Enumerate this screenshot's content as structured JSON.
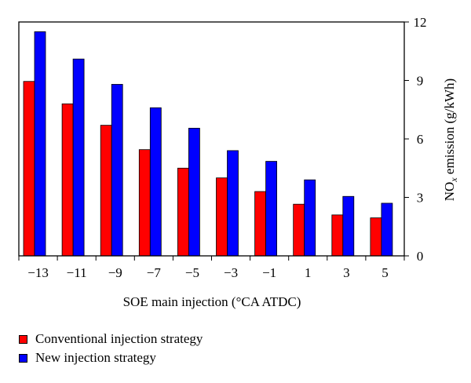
{
  "chart_data": {
    "type": "bar",
    "categories": [
      "−13",
      "−11",
      "−9",
      "−7",
      "−5",
      "−3",
      "−1",
      "1",
      "3",
      "5"
    ],
    "series": [
      {
        "name": "Conventional injection strategy",
        "color": "#ff0000",
        "values": [
          8.95,
          7.8,
          6.7,
          5.45,
          4.5,
          4.0,
          3.3,
          2.65,
          2.1,
          1.95
        ]
      },
      {
        "name": "New injection strategy",
        "color": "#0000ff",
        "values": [
          11.5,
          10.1,
          8.8,
          7.6,
          6.55,
          5.4,
          4.85,
          3.9,
          3.05,
          2.7
        ]
      }
    ],
    "xlabel": "SOE main injection (°CA ATDC)",
    "ylabel": "NO",
    "ylabel_sub": "x",
    "ylabel_rest": " emission (g/kWh)",
    "ylim": [
      0,
      12
    ],
    "yticks": [
      0,
      3,
      6,
      9,
      12
    ],
    "y_axis_side": "right",
    "grid": false,
    "legend_position": "bottom-left"
  }
}
